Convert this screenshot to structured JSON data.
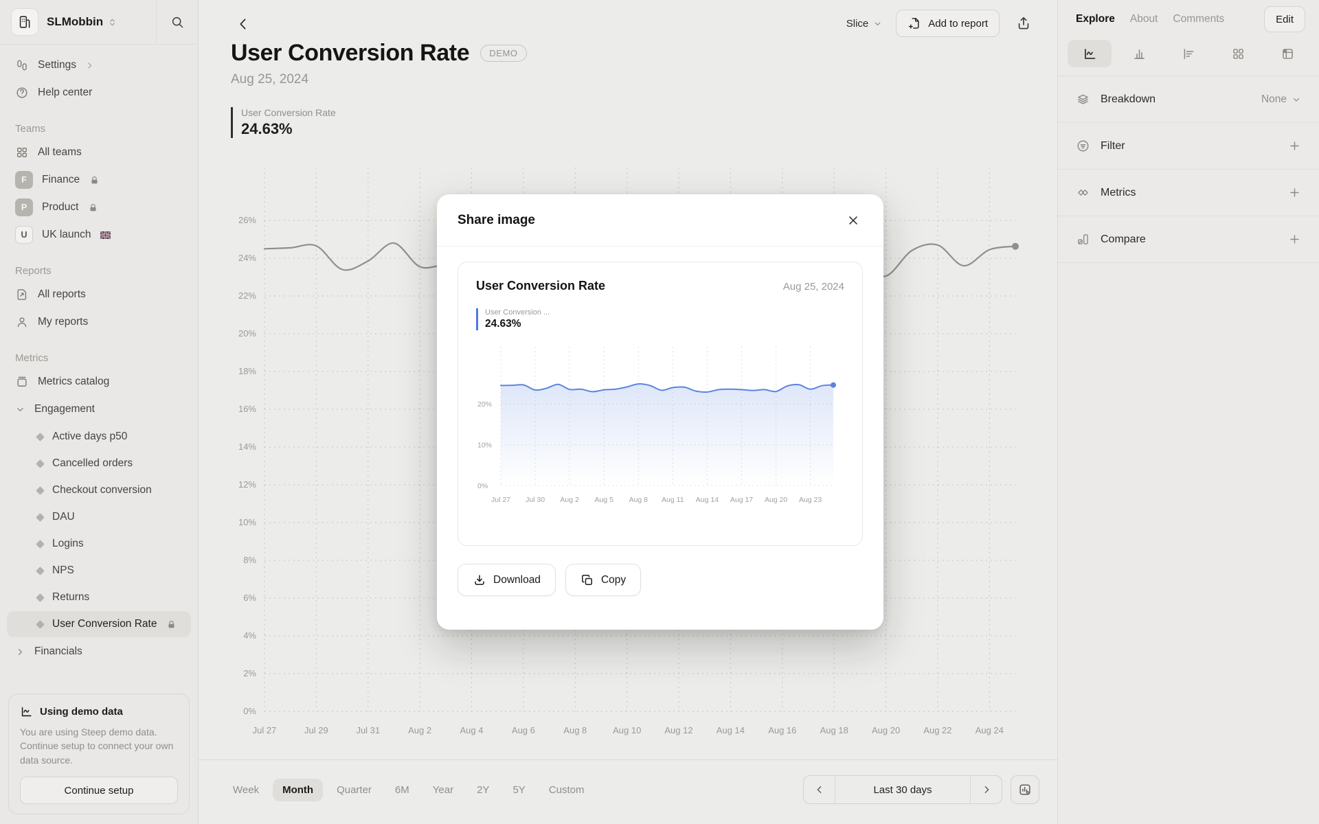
{
  "sidebar": {
    "workspace": "SLMobbin",
    "settings_label": "Settings",
    "help_label": "Help center",
    "teams_title": "Teams",
    "teams": [
      {
        "label": "All teams"
      },
      {
        "label": "Finance",
        "avatar": "F",
        "locked": true
      },
      {
        "label": "Product",
        "avatar": "P",
        "locked": true
      },
      {
        "label": "UK launch",
        "avatar": "U"
      }
    ],
    "reports_title": "Reports",
    "reports": [
      {
        "label": "All reports"
      },
      {
        "label": "My reports"
      }
    ],
    "metrics_title": "Metrics",
    "metrics_catalog_label": "Metrics catalog",
    "engagement_group": "Engagement",
    "metric_items": [
      "Active days p50",
      "Cancelled orders",
      "Checkout conversion",
      "DAU",
      "Logins",
      "NPS",
      "Returns",
      "User Conversion Rate"
    ],
    "selected_metric": "User Conversion Rate",
    "financials_group": "Financials",
    "demo_card": {
      "title": "Using demo data",
      "body": "You are using Steep demo data. Continue setup to connect your own data source.",
      "button": "Continue setup"
    }
  },
  "toolbar": {
    "slice": "Slice",
    "add_to_report": "Add to report"
  },
  "page": {
    "title": "User Conversion Rate",
    "badge": "DEMO",
    "date": "Aug 25, 2024",
    "kpi_label": "User Conversion Rate",
    "kpi_value": "24.63%"
  },
  "right_panel": {
    "tabs": [
      "Explore",
      "About",
      "Comments"
    ],
    "active_tab": "Explore",
    "edit_button": "Edit",
    "rows": [
      {
        "label": "Breakdown",
        "value": "None"
      },
      {
        "label": "Filter",
        "action": "+"
      },
      {
        "label": "Metrics",
        "action": "+"
      },
      {
        "label": "Compare",
        "action": "+"
      }
    ]
  },
  "modal": {
    "title": "Share image",
    "preview": {
      "title": "User Conversion Rate",
      "date": "Aug 25, 2024",
      "kpi_label": "User Conversion ...",
      "kpi_value": "24.63%"
    },
    "download_button": "Download",
    "copy_button": "Copy"
  },
  "timebar": {
    "options": [
      "Week",
      "Month",
      "Quarter",
      "6M",
      "Year",
      "2Y",
      "5Y",
      "Custom"
    ],
    "selected": "Month",
    "range_label": "Last 30 days"
  },
  "colors": {
    "accent_blue": "#5b84e0",
    "kpi_accent_blue": "#4a79e0",
    "background_line_gray": "#8f8f8f",
    "sidebar_bg": "#e9e8e6",
    "main_bg": "#ececea",
    "panel_bg": "#ebeae8",
    "selected_pill": "#dfdedb"
  },
  "chart_data": [
    {
      "type": "line",
      "title": "User Conversion Rate",
      "xlabel": "",
      "ylabel": "",
      "ylim": [
        0,
        28.8
      ],
      "grid": "dashed",
      "legend": "none",
      "line_color": "#8f8f8f",
      "yticks_labels": [
        "0%",
        "2%",
        "4%",
        "6%",
        "8%",
        "10%",
        "12%",
        "14%",
        "16%",
        "18%",
        "20%",
        "22%",
        "24%",
        "26%"
      ],
      "xticks_labels": [
        "Jul 27",
        "Jul 29",
        "Jul 31",
        "Aug 2",
        "Aug 4",
        "Aug 6",
        "Aug 8",
        "Aug 10",
        "Aug 12",
        "Aug 14",
        "Aug 16",
        "Aug 18",
        "Aug 20",
        "Aug 22",
        "Aug 24"
      ],
      "x": [
        "Jul 27",
        "Jul 28",
        "Jul 29",
        "Jul 30",
        "Jul 31",
        "Aug 1",
        "Aug 2",
        "Aug 3",
        "Aug 4",
        "Aug 5",
        "Aug 6",
        "Aug 7",
        "Aug 8",
        "Aug 9",
        "Aug 10",
        "Aug 11",
        "Aug 12",
        "Aug 13",
        "Aug 14",
        "Aug 15",
        "Aug 16",
        "Aug 17",
        "Aug 18",
        "Aug 19",
        "Aug 20",
        "Aug 21",
        "Aug 22",
        "Aug 23",
        "Aug 24",
        "Aug 25"
      ],
      "values": [
        24.5,
        24.55,
        24.65,
        23.4,
        23.85,
        24.8,
        23.55,
        23.6,
        23.0,
        23.45,
        23.6,
        24.15,
        24.9,
        24.5,
        23.35,
        24.0,
        24.1,
        23.15,
        22.9,
        23.5,
        23.6,
        23.5,
        23.3,
        23.5,
        23.05,
        24.4,
        24.7,
        23.6,
        24.45,
        24.63
      ]
    },
    {
      "type": "area",
      "title": "User Conversion Rate (share preview)",
      "xlabel": "",
      "ylabel": "",
      "ylim": [
        0,
        34
      ],
      "grid": "dashed",
      "legend": "none",
      "line_color": "#5b84e0",
      "fill_from": "rgba(91,132,224,0.20)",
      "fill_to": "rgba(91,132,224,0)",
      "yticks_labels": [
        "0%",
        "10%",
        "20%"
      ],
      "xticks_labels": [
        "Jul 27",
        "Jul 30",
        "Aug 2",
        "Aug 5",
        "Aug 8",
        "Aug 11",
        "Aug 14",
        "Aug 17",
        "Aug 20",
        "Aug 23"
      ],
      "x": [
        "Jul 27",
        "Jul 28",
        "Jul 29",
        "Jul 30",
        "Jul 31",
        "Aug 1",
        "Aug 2",
        "Aug 3",
        "Aug 4",
        "Aug 5",
        "Aug 6",
        "Aug 7",
        "Aug 8",
        "Aug 9",
        "Aug 10",
        "Aug 11",
        "Aug 12",
        "Aug 13",
        "Aug 14",
        "Aug 15",
        "Aug 16",
        "Aug 17",
        "Aug 18",
        "Aug 19",
        "Aug 20",
        "Aug 21",
        "Aug 22",
        "Aug 23",
        "Aug 24",
        "Aug 25"
      ],
      "values": [
        24.5,
        24.55,
        24.65,
        23.4,
        23.85,
        24.8,
        23.55,
        23.6,
        23.0,
        23.45,
        23.6,
        24.15,
        24.9,
        24.5,
        23.35,
        24.0,
        24.1,
        23.15,
        22.9,
        23.5,
        23.6,
        23.5,
        23.3,
        23.5,
        23.05,
        24.4,
        24.7,
        23.6,
        24.45,
        24.63
      ]
    }
  ]
}
